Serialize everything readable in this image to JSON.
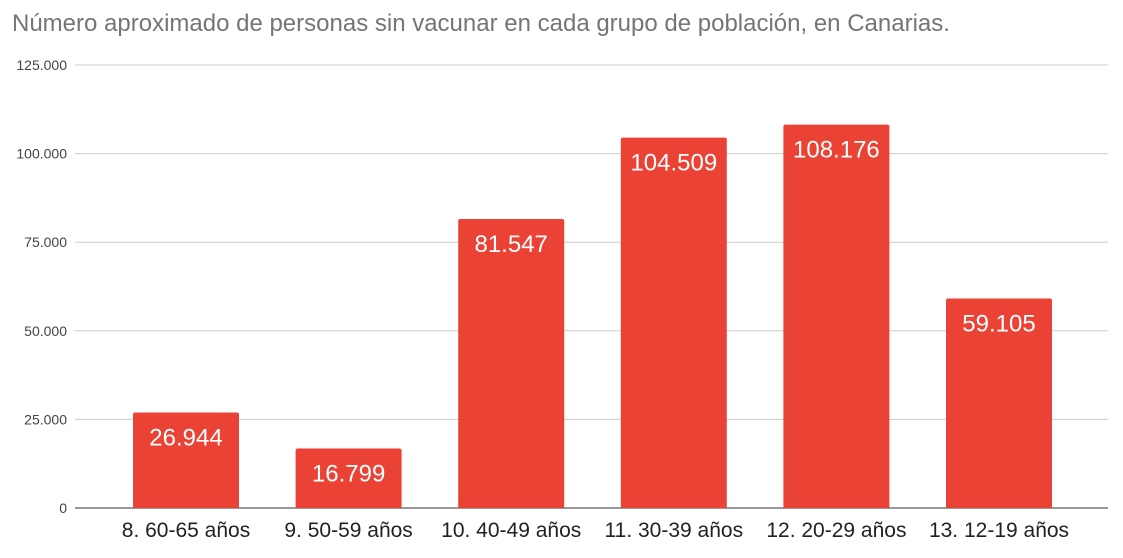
{
  "chart_data": {
    "type": "bar",
    "title": "Número aproximado de personas sin vacunar en cada grupo de población, en Canarias.",
    "xlabel": "",
    "ylabel": "",
    "categories": [
      "8. 60-65 años",
      "9. 50-59 años",
      "10. 40-49 años",
      "11. 30-39 años",
      "12. 20-29 años",
      "13. 12-19 años"
    ],
    "values": [
      26944,
      16799,
      81547,
      104509,
      108176,
      59105
    ],
    "data_labels": [
      "26.944",
      "16.799",
      "81.547",
      "104.509",
      "108.176",
      "59.105"
    ],
    "ylim": [
      0,
      125000
    ],
    "yticks": [
      0,
      25000,
      50000,
      75000,
      100000,
      125000
    ],
    "ytick_labels": [
      "0",
      "25.000",
      "50.000",
      "75.000",
      "100.000",
      "125.000"
    ],
    "grid": true,
    "legend": "none",
    "bar_color": "#ea4335",
    "grid_color": "#cccccc"
  }
}
